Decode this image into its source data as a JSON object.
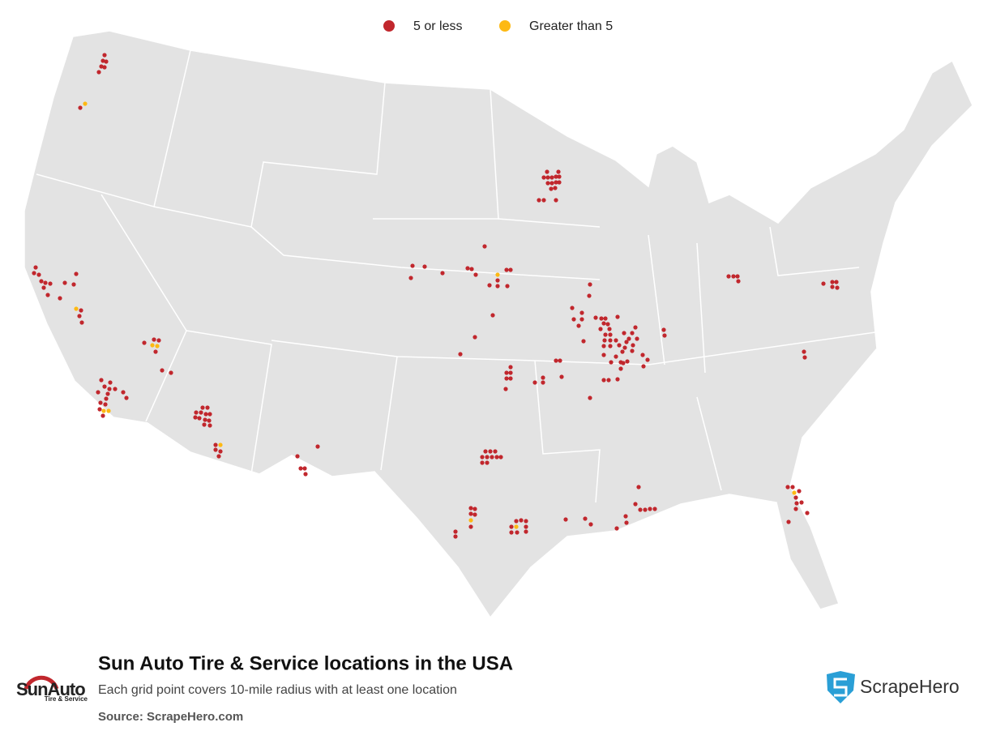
{
  "legend": {
    "items": [
      {
        "label": "5 or less",
        "color": "#c1272d"
      },
      {
        "label": "Greater than 5",
        "color": "#fdb913"
      }
    ]
  },
  "header": {
    "title": "Sun Auto Tire & Service locations in the USA",
    "subtitle": "Each grid point covers 10-mile radius with at least one location",
    "source": "Source: ScrapeHero.com"
  },
  "logos": {
    "brand": "SunAuto",
    "brand_tagline": "Tire & Service",
    "publisher": "ScrapeHero"
  }
}
